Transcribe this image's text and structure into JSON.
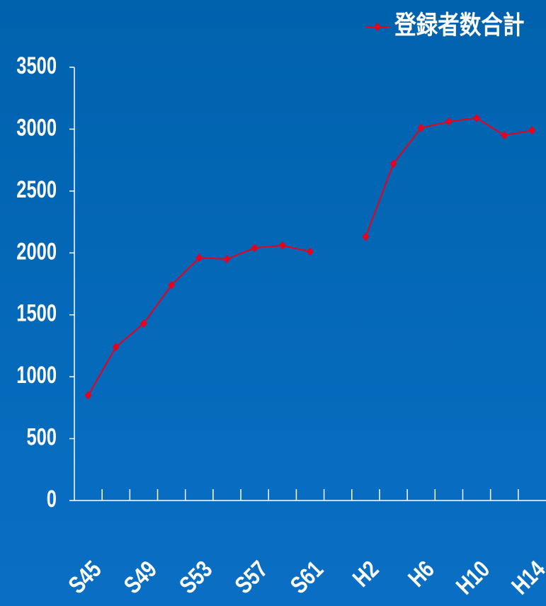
{
  "chart_data": {
    "type": "line",
    "categories": [
      "S45",
      null,
      "S49",
      null,
      "S53",
      null,
      "S57",
      null,
      "S61",
      null,
      "H2",
      null,
      "H6",
      null,
      "H10",
      null,
      "H14"
    ],
    "series": [
      {
        "name": "登録者数合計",
        "color": "#e8001c",
        "values": [
          850,
          1240,
          1430,
          1740,
          1960,
          1950,
          2040,
          2060,
          2010,
          null,
          2130,
          2720,
          3010,
          3060,
          3090,
          2950,
          2990
        ]
      }
    ],
    "ylim": [
      0,
      3500
    ],
    "yticks": [
      0,
      500,
      1000,
      1500,
      2000,
      2500,
      3000,
      3500
    ],
    "legend": "top-right"
  }
}
